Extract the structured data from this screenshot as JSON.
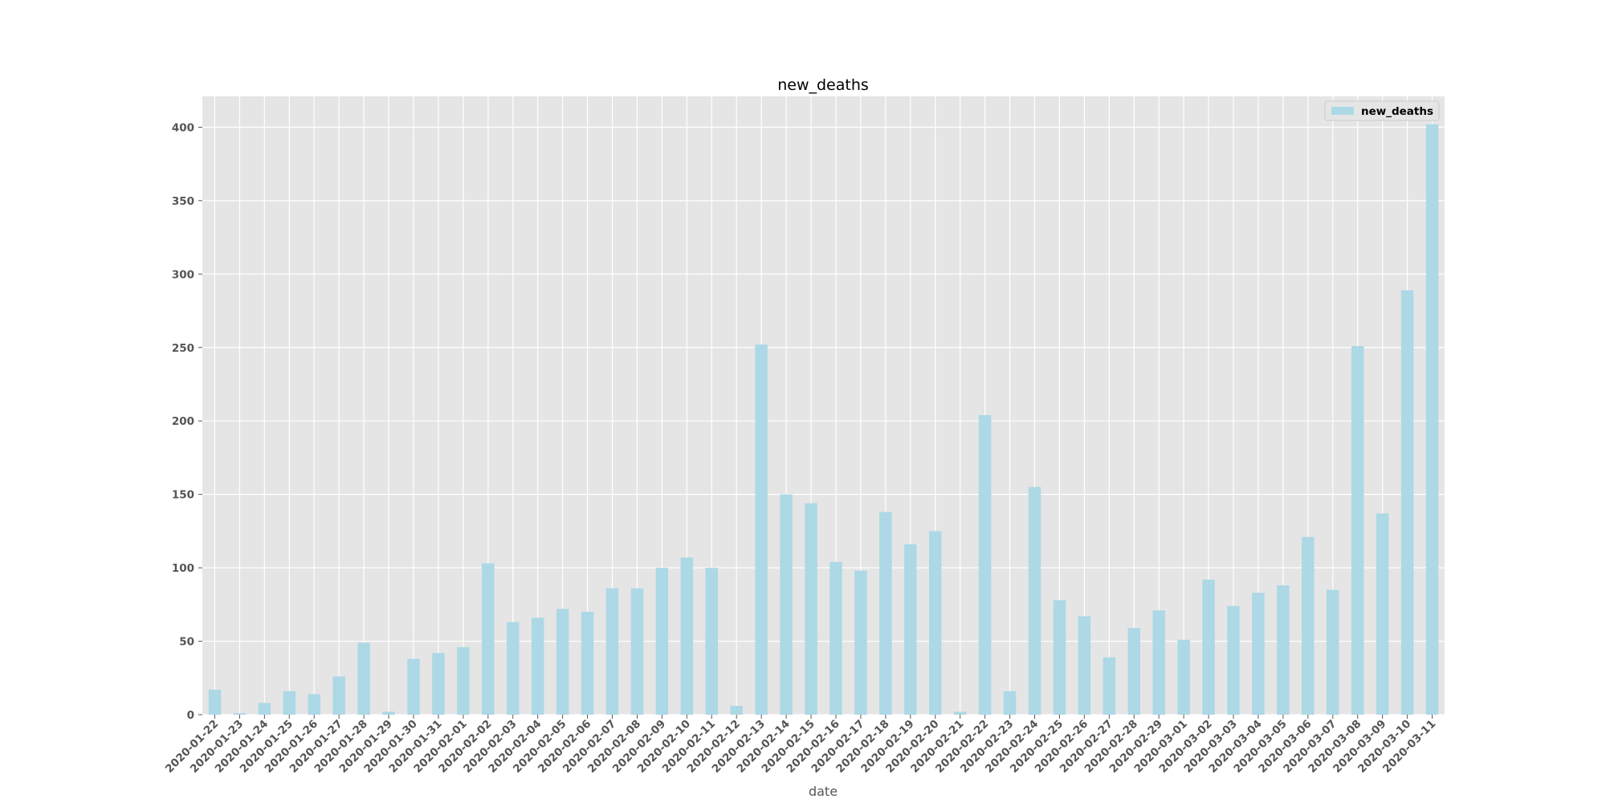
{
  "chart_data": {
    "type": "bar",
    "title": "new_deaths",
    "xlabel": "date",
    "ylabel": "",
    "ylim": [
      0,
      421
    ],
    "yticks": [
      0,
      50,
      100,
      150,
      200,
      250,
      300,
      350,
      400
    ],
    "grid": true,
    "legend_position": "top-right",
    "categories": [
      "2020-01-22",
      "2020-01-23",
      "2020-01-24",
      "2020-01-25",
      "2020-01-26",
      "2020-01-27",
      "2020-01-28",
      "2020-01-29",
      "2020-01-30",
      "2020-01-31",
      "2020-02-01",
      "2020-02-02",
      "2020-02-03",
      "2020-02-04",
      "2020-02-05",
      "2020-02-06",
      "2020-02-07",
      "2020-02-08",
      "2020-02-09",
      "2020-02-10",
      "2020-02-11",
      "2020-02-12",
      "2020-02-13",
      "2020-02-14",
      "2020-02-15",
      "2020-02-16",
      "2020-02-17",
      "2020-02-18",
      "2020-02-19",
      "2020-02-20",
      "2020-02-21",
      "2020-02-22",
      "2020-02-23",
      "2020-02-24",
      "2020-02-25",
      "2020-02-26",
      "2020-02-27",
      "2020-02-28",
      "2020-02-29",
      "2020-03-01",
      "2020-03-02",
      "2020-03-03",
      "2020-03-04",
      "2020-03-05",
      "2020-03-06",
      "2020-03-07",
      "2020-03-08",
      "2020-03-09",
      "2020-03-10",
      "2020-03-11"
    ],
    "series": [
      {
        "name": "new_deaths",
        "color": "#add8e6",
        "values": [
          17,
          1,
          8,
          16,
          14,
          26,
          49,
          2,
          38,
          42,
          46,
          103,
          63,
          66,
          72,
          70,
          86,
          86,
          100,
          107,
          100,
          6,
          252,
          150,
          144,
          104,
          98,
          138,
          116,
          125,
          2,
          204,
          16,
          155,
          78,
          67,
          39,
          59,
          71,
          51,
          92,
          74,
          83,
          88,
          121,
          85,
          251,
          137,
          289,
          402
        ]
      }
    ]
  }
}
